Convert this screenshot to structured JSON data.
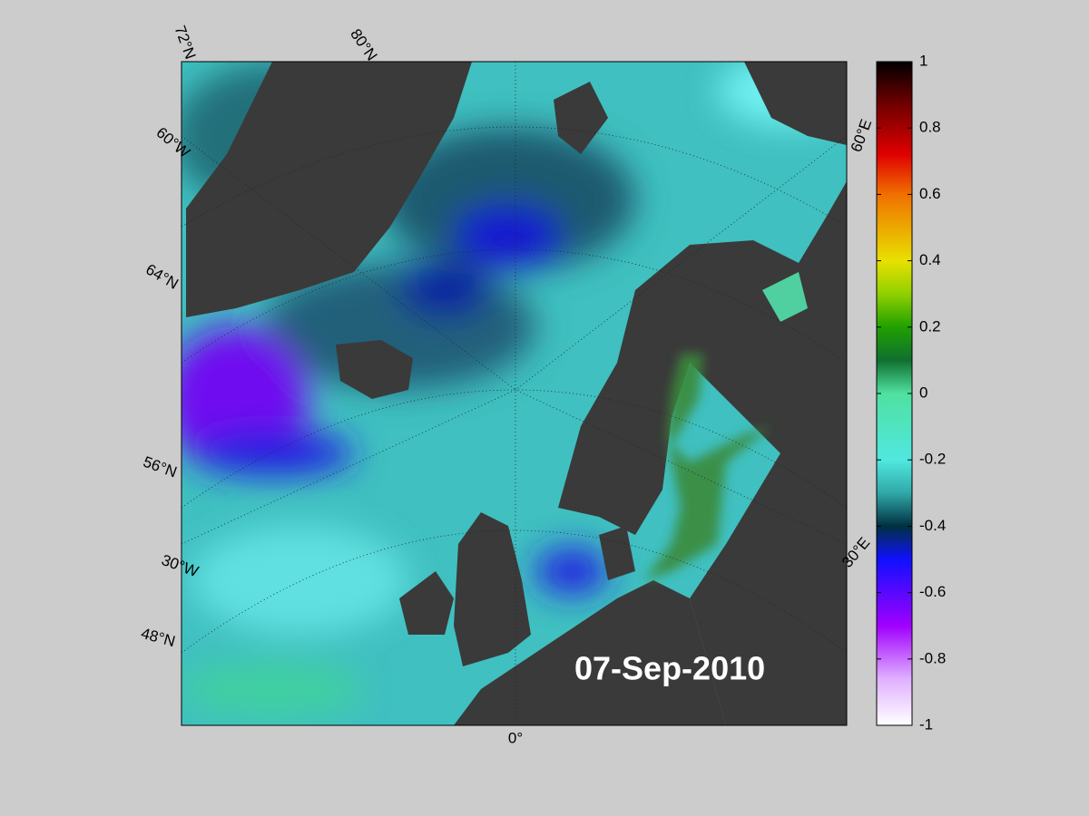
{
  "map": {
    "date": "07-Sep-2010",
    "grid_labels": [
      "72°N",
      "80°N",
      "60°W",
      "64°N",
      "56°N",
      "30°W",
      "48°N",
      "0°",
      "60°E",
      "30°E"
    ],
    "colorbar": {
      "lim": [
        -1,
        1
      ],
      "ticks": [
        1,
        0.8,
        0.6,
        0.4,
        0.2,
        0,
        -0.2,
        -0.4,
        -0.6,
        -0.8,
        -1
      ]
    }
  }
}
